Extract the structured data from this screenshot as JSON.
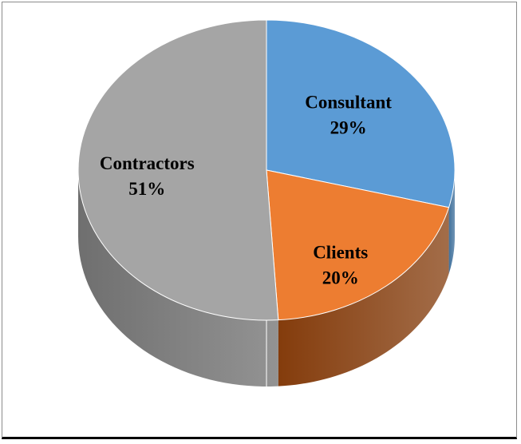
{
  "chart_data": {
    "type": "pie",
    "style": "3d",
    "slices": [
      {
        "label": "Consultant",
        "percent_label": "29%",
        "value": 29,
        "color": "#5b9bd5",
        "side_color": "#41719c"
      },
      {
        "label": "Clients",
        "percent_label": "20%",
        "value": 20,
        "color": "#ed7d31",
        "side_color": "#843c0c"
      },
      {
        "label": "Contractors",
        "percent_label": "51%",
        "value": 51,
        "color": "#a5a5a5",
        "side_color": "#6f6f6f"
      }
    ],
    "legend": "none"
  }
}
